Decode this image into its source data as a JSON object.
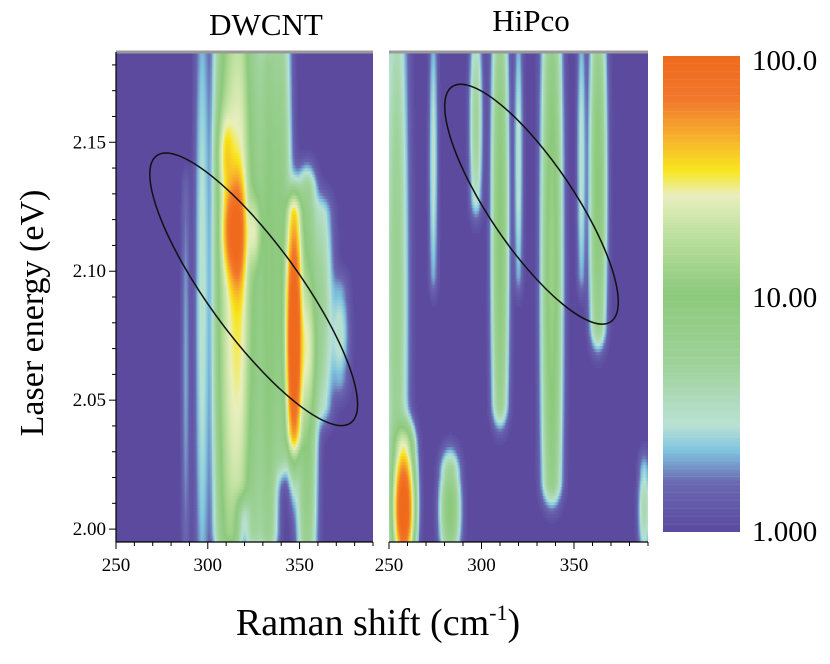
{
  "chart_data": {
    "type": "heatmap",
    "panels": [
      {
        "title": "DWCNT",
        "xlim": [
          250,
          390
        ],
        "ylim": [
          1.995,
          2.185
        ],
        "xticks": [
          "250",
          "300",
          "350"
        ],
        "yticks": [
          "2.00",
          "2.05",
          "2.10",
          "2.15"
        ],
        "ridges": [
          {
            "x": 288,
            "y0": 1.995,
            "y1": 2.13,
            "w": 1.5,
            "peak": 2
          },
          {
            "x": 297,
            "y0": 1.995,
            "y1": 2.185,
            "w": 2.5,
            "peak": 3
          },
          {
            "x": 308,
            "y0": 2.0,
            "y1": 2.185,
            "w": 3,
            "peak": 10
          },
          {
            "x": 313,
            "y0": 2.0,
            "y1": 2.185,
            "w": 3,
            "peak": 20
          },
          {
            "x": 318,
            "y0": 2.02,
            "y1": 2.185,
            "w": 3,
            "peak": 25
          },
          {
            "x": 325,
            "y0": 2.0,
            "y1": 2.185,
            "w": 3,
            "peak": 8
          },
          {
            "x": 333,
            "y0": 2.0,
            "y1": 2.18,
            "w": 3,
            "peak": 10
          },
          {
            "x": 340,
            "y0": 2.03,
            "y1": 2.185,
            "w": 3,
            "peak": 8
          },
          {
            "x": 347,
            "y0": 2.04,
            "y1": 2.12,
            "w": 2.5,
            "peak": 60
          },
          {
            "x": 354,
            "y0": 1.995,
            "y1": 2.13,
            "w": 3,
            "peak": 10
          },
          {
            "x": 362,
            "y0": 2.05,
            "y1": 2.12,
            "w": 3.5,
            "peak": 5
          },
          {
            "x": 372,
            "y0": 2.06,
            "y1": 2.09,
            "w": 3,
            "peak": 3
          }
        ],
        "spots": [
          {
            "x": 316,
            "y": 2.115,
            "sx": 2.5,
            "sy": 0.012,
            "peak": 80
          },
          {
            "x": 312,
            "y": 2.116,
            "sx": 2.5,
            "sy": 0.01,
            "peak": 40
          },
          {
            "x": 347,
            "y": 2.072,
            "sx": 2.0,
            "sy": 0.02,
            "peak": 95
          },
          {
            "x": 310,
            "y": 2.145,
            "sx": 2.5,
            "sy": 0.01,
            "peak": 20
          },
          {
            "x": 325,
            "y": 2.115,
            "sx": 2.5,
            "sy": 0.008,
            "peak": 15
          },
          {
            "x": 354,
            "y": 2.07,
            "sx": 3.0,
            "sy": 0.015,
            "peak": 15
          }
        ],
        "ellipse": {
          "cx": 325,
          "cy": 2.093,
          "rx": 25,
          "ry": 0.064,
          "rot": -36
        }
      },
      {
        "title": "HiPco",
        "xlim": [
          250,
          390
        ],
        "ylim": [
          1.995,
          2.185
        ],
        "xticks": [
          "250",
          "300",
          "350"
        ],
        "yticks": [],
        "ridges": [
          {
            "x": 254,
            "y0": 1.995,
            "y1": 2.185,
            "w": 3.5,
            "peak": 6
          },
          {
            "x": 258,
            "y0": 1.995,
            "y1": 2.03,
            "w": 3,
            "peak": 40
          },
          {
            "x": 274,
            "y0": 2.1,
            "y1": 2.185,
            "w": 1.5,
            "peak": 3
          },
          {
            "x": 283,
            "y0": 1.995,
            "y1": 2.02,
            "w": 3,
            "peak": 10
          },
          {
            "x": 297,
            "y0": 2.13,
            "y1": 2.185,
            "w": 2,
            "peak": 5
          },
          {
            "x": 310,
            "y0": 2.05,
            "y1": 2.185,
            "w": 2.5,
            "peak": 10
          },
          {
            "x": 320,
            "y0": 2.1,
            "y1": 2.185,
            "w": 1.5,
            "peak": 3
          },
          {
            "x": 338,
            "y0": 2.02,
            "y1": 2.185,
            "w": 3,
            "peak": 12
          },
          {
            "x": 354,
            "y0": 2.1,
            "y1": 2.185,
            "w": 1.5,
            "peak": 3
          },
          {
            "x": 363,
            "y0": 2.08,
            "y1": 2.185,
            "w": 2.5,
            "peak": 10
          },
          {
            "x": 388,
            "y0": 1.995,
            "y1": 2.02,
            "w": 2,
            "peak": 4
          }
        ],
        "spots": [
          {
            "x": 258,
            "y": 2.007,
            "sx": 2.5,
            "sy": 0.01,
            "peak": 90
          }
        ],
        "ellipse": {
          "cx": 327,
          "cy": 2.126,
          "rx": 23,
          "ry": 0.055,
          "rot": -34
        }
      }
    ],
    "xlabel": "Raman shift (cm",
    "xlabel_sup": "-1",
    "xlabel_end": ")",
    "ylabel": "Laser energy (eV)",
    "colorbar": {
      "scale": "log",
      "min": 1.0,
      "max": 100.0,
      "labels": [
        "100.0",
        "10.00",
        "1.000"
      ],
      "stops": [
        {
          "v": 1.0,
          "c": "#5b4a9e"
        },
        {
          "v": 1.6,
          "c": "#6a67b0"
        },
        {
          "v": 2.2,
          "c": "#7ec4df"
        },
        {
          "v": 2.8,
          "c": "#b9e1d4"
        },
        {
          "v": 5.0,
          "c": "#9fd29a"
        },
        {
          "v": 10.0,
          "c": "#8cc97c"
        },
        {
          "v": 19.0,
          "c": "#c4e3a4"
        },
        {
          "v": 26.0,
          "c": "#e9efbd"
        },
        {
          "v": 33.0,
          "c": "#f8e61c"
        },
        {
          "v": 45.0,
          "c": "#f7b22c"
        },
        {
          "v": 65.0,
          "c": "#f2782c"
        },
        {
          "v": 100.0,
          "c": "#ef6a1c"
        }
      ]
    }
  }
}
